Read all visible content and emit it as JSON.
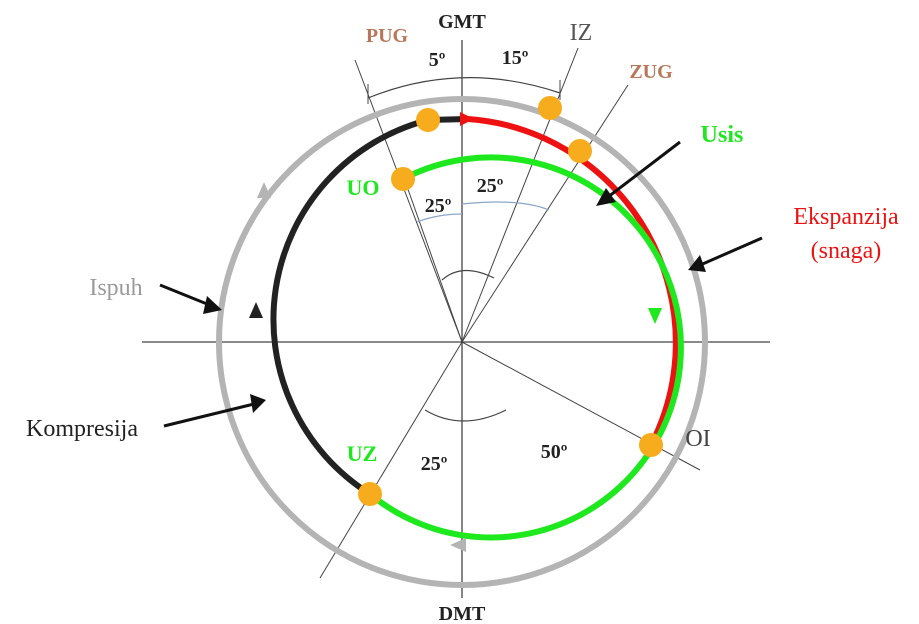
{
  "diagram": {
    "labels": {
      "gmt": "GMT",
      "dmt": "DMT",
      "pug": "PUG",
      "iz": "IZ",
      "zug": "ZUG",
      "usis": "Usis",
      "ekspanzija": "Ekspanzija",
      "snaga": "(snaga)",
      "uo": "UO",
      "ispuh": "Ispuh",
      "kompresija": "Kompresija",
      "uz": "UZ",
      "oi": "OI"
    },
    "angles": {
      "pug_gmt": "5º",
      "gmt_iz": "15º",
      "uo_left": "25º",
      "uo_right": "25º",
      "uz_dmt": "25º",
      "oi_dmt": "50º"
    },
    "colors": {
      "usis": "#1ee81e",
      "ekspanzija": "#ee1111",
      "ispuh": "#b4b4b4",
      "kompresija": "#222222",
      "marker": "#f6ac1c",
      "pug_zug_text": "#b8775a",
      "iz_text": "#555555"
    }
  }
}
